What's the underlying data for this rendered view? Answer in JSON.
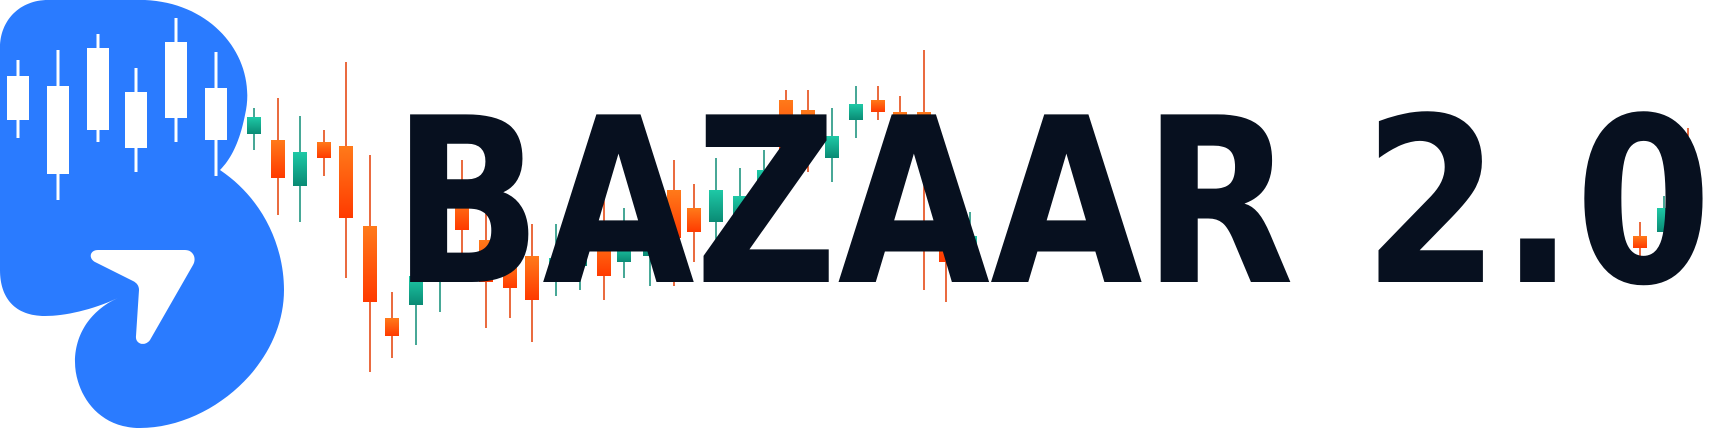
{
  "logo": {
    "wordmark": "BAZAAR 2.0",
    "icon": "pointer-cursor-icon",
    "colors": {
      "brand_blue": "#2a7bff",
      "text": "#07101f",
      "bull": "#14b59a",
      "bull_dark": "#0a8a74",
      "bear": "#ff5a0a",
      "bear_dark": "#e33a00",
      "icon_candles": "#ffffff"
    }
  }
}
